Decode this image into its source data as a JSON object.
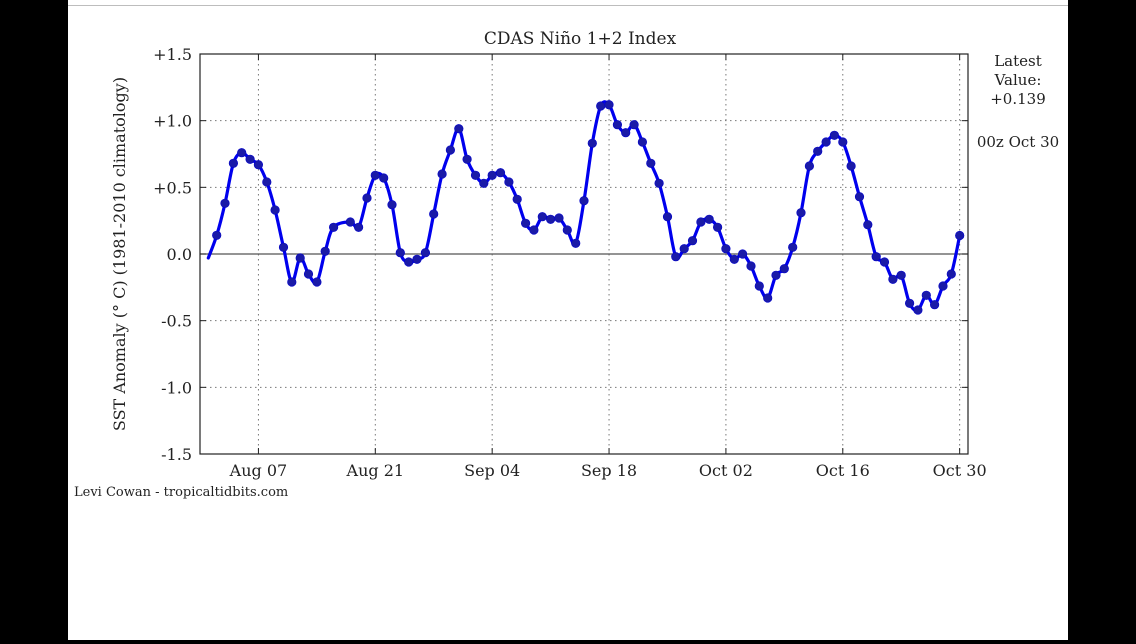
{
  "chart_data": {
    "type": "line",
    "title": "CDAS Niño 1+2 Index",
    "ylabel": "SST Anomaly (° C) (1981-2010 climatology)",
    "xlabel": "",
    "ylim": [
      -1.5,
      1.5
    ],
    "yticks": [
      "-1.5",
      "-1.0",
      "-0.5",
      "0.0",
      "+0.5",
      "+1.0",
      "+1.5"
    ],
    "xticks": [
      {
        "label": "Aug 07",
        "date": "2014-08-07"
      },
      {
        "label": "Aug 21",
        "date": "2014-08-21"
      },
      {
        "label": "Sep 04",
        "date": "2014-09-04"
      },
      {
        "label": "Sep 18",
        "date": "2014-09-18"
      },
      {
        "label": "Oct 02",
        "date": "2014-10-02"
      },
      {
        "label": "Oct 16",
        "date": "2014-10-16"
      },
      {
        "label": "Oct 30",
        "date": "2014-10-30"
      }
    ],
    "xlim": [
      "2014-07-31",
      "2014-10-31"
    ],
    "grid": true,
    "series": [
      {
        "color": "#0000ee",
        "points": [
          [
            "2014-08-01",
            -0.03
          ],
          [
            "2014-08-02",
            0.14
          ],
          [
            "2014-08-03",
            0.38
          ],
          [
            "2014-08-04",
            0.68
          ],
          [
            "2014-08-05",
            0.76
          ],
          [
            "2014-08-06",
            0.71
          ],
          [
            "2014-08-07",
            0.67
          ],
          [
            "2014-08-08",
            0.54
          ],
          [
            "2014-08-09",
            0.33
          ],
          [
            "2014-08-10",
            0.05
          ],
          [
            "2014-08-11",
            -0.21
          ],
          [
            "2014-08-12",
            -0.03
          ],
          [
            "2014-08-13",
            -0.15
          ],
          [
            "2014-08-14",
            -0.21
          ],
          [
            "2014-08-15",
            0.02
          ],
          [
            "2014-08-16",
            0.2
          ],
          [
            "2014-08-18",
            0.24
          ],
          [
            "2014-08-19",
            0.2
          ],
          [
            "2014-08-20",
            0.42
          ],
          [
            "2014-08-21",
            0.59
          ],
          [
            "2014-08-22",
            0.57
          ],
          [
            "2014-08-23",
            0.37
          ],
          [
            "2014-08-24",
            0.01
          ],
          [
            "2014-08-25",
            -0.06
          ],
          [
            "2014-08-26",
            -0.04
          ],
          [
            "2014-08-27",
            0.01
          ],
          [
            "2014-08-28",
            0.3
          ],
          [
            "2014-08-29",
            0.6
          ],
          [
            "2014-08-30",
            0.78
          ],
          [
            "2014-08-31",
            0.94
          ],
          [
            "2014-09-01",
            0.71
          ],
          [
            "2014-09-02",
            0.59
          ],
          [
            "2014-09-03",
            0.53
          ],
          [
            "2014-09-04",
            0.59
          ],
          [
            "2014-09-05",
            0.61
          ],
          [
            "2014-09-06",
            0.54
          ],
          [
            "2014-09-07",
            0.41
          ],
          [
            "2014-09-08",
            0.23
          ],
          [
            "2014-09-09",
            0.18
          ],
          [
            "2014-09-10",
            0.28
          ],
          [
            "2014-09-11",
            0.26
          ],
          [
            "2014-09-12",
            0.27
          ],
          [
            "2014-09-13",
            0.18
          ],
          [
            "2014-09-14",
            0.08
          ],
          [
            "2014-09-15",
            0.4
          ],
          [
            "2014-09-16",
            0.83
          ],
          [
            "2014-09-17",
            1.11
          ],
          [
            "2014-09-18",
            1.12
          ],
          [
            "2014-09-19",
            0.97
          ],
          [
            "2014-09-20",
            0.91
          ],
          [
            "2014-09-21",
            0.97
          ],
          [
            "2014-09-22",
            0.84
          ],
          [
            "2014-09-23",
            0.68
          ],
          [
            "2014-09-24",
            0.53
          ],
          [
            "2014-09-25",
            0.28
          ],
          [
            "2014-09-26",
            -0.02
          ],
          [
            "2014-09-27",
            0.04
          ],
          [
            "2014-09-28",
            0.1
          ],
          [
            "2014-09-29",
            0.24
          ],
          [
            "2014-09-30",
            0.26
          ],
          [
            "2014-10-01",
            0.2
          ],
          [
            "2014-10-02",
            0.04
          ],
          [
            "2014-10-03",
            -0.04
          ],
          [
            "2014-10-04",
            0.0
          ],
          [
            "2014-10-05",
            -0.09
          ],
          [
            "2014-10-06",
            -0.24
          ],
          [
            "2014-10-07",
            -0.33
          ],
          [
            "2014-10-08",
            -0.16
          ],
          [
            "2014-10-09",
            -0.11
          ],
          [
            "2014-10-10",
            0.05
          ],
          [
            "2014-10-11",
            0.31
          ],
          [
            "2014-10-12",
            0.66
          ],
          [
            "2014-10-13",
            0.77
          ],
          [
            "2014-10-14",
            0.84
          ],
          [
            "2014-10-15",
            0.89
          ],
          [
            "2014-10-16",
            0.84
          ],
          [
            "2014-10-17",
            0.66
          ],
          [
            "2014-10-18",
            0.43
          ],
          [
            "2014-10-19",
            0.22
          ],
          [
            "2014-10-20",
            -0.02
          ],
          [
            "2014-10-21",
            -0.06
          ],
          [
            "2014-10-22",
            -0.19
          ],
          [
            "2014-10-23",
            -0.16
          ],
          [
            "2014-10-24",
            -0.37
          ],
          [
            "2014-10-25",
            -0.42
          ],
          [
            "2014-10-26",
            -0.31
          ],
          [
            "2014-10-27",
            -0.38
          ],
          [
            "2014-10-28",
            -0.24
          ],
          [
            "2014-10-29",
            -0.15
          ],
          [
            "2014-10-30",
            0.139
          ]
        ]
      }
    ],
    "latest": {
      "label": "Latest\nValue:",
      "value": "+0.139",
      "time": "00z Oct 30"
    },
    "credit": "Levi Cowan - tropicaltidbits.com"
  }
}
